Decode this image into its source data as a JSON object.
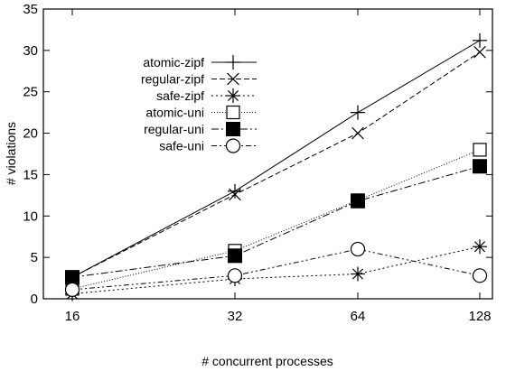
{
  "chart_data": {
    "type": "line",
    "xlabel": "# concurrent processes",
    "ylabel": "# violations",
    "x": [
      16,
      32,
      64,
      128
    ],
    "x_scale": "log2",
    "xticks": [
      "16",
      "32",
      "64",
      "128"
    ],
    "ylim": [
      0,
      35
    ],
    "yticks": [
      "0",
      "5",
      "10",
      "15",
      "20",
      "25",
      "30",
      "35"
    ],
    "grid": false,
    "legend_position": "top-left",
    "series": [
      {
        "name": "atomic-zipf",
        "values": [
          2.6,
          13.0,
          22.5,
          31.2
        ],
        "marker": "plus",
        "dash": "solid"
      },
      {
        "name": "regular-zipf",
        "values": [
          2.6,
          12.6,
          20.0,
          29.8
        ],
        "marker": "cross",
        "dash": "dashed"
      },
      {
        "name": "safe-zipf",
        "values": [
          0.6,
          2.4,
          3.0,
          6.3
        ],
        "marker": "star",
        "dash": "dotted"
      },
      {
        "name": "atomic-uni",
        "values": [
          1.2,
          5.8,
          11.9,
          18.0
        ],
        "marker": "open-square",
        "dash": "fine-dotted"
      },
      {
        "name": "regular-uni",
        "values": [
          2.6,
          5.2,
          11.8,
          16.0
        ],
        "marker": "filled-square",
        "dash": "dash-dot"
      },
      {
        "name": "safe-uni",
        "values": [
          1.1,
          2.8,
          6.0,
          2.8
        ],
        "marker": "open-circle",
        "dash": "dash-dot-dot"
      }
    ]
  }
}
